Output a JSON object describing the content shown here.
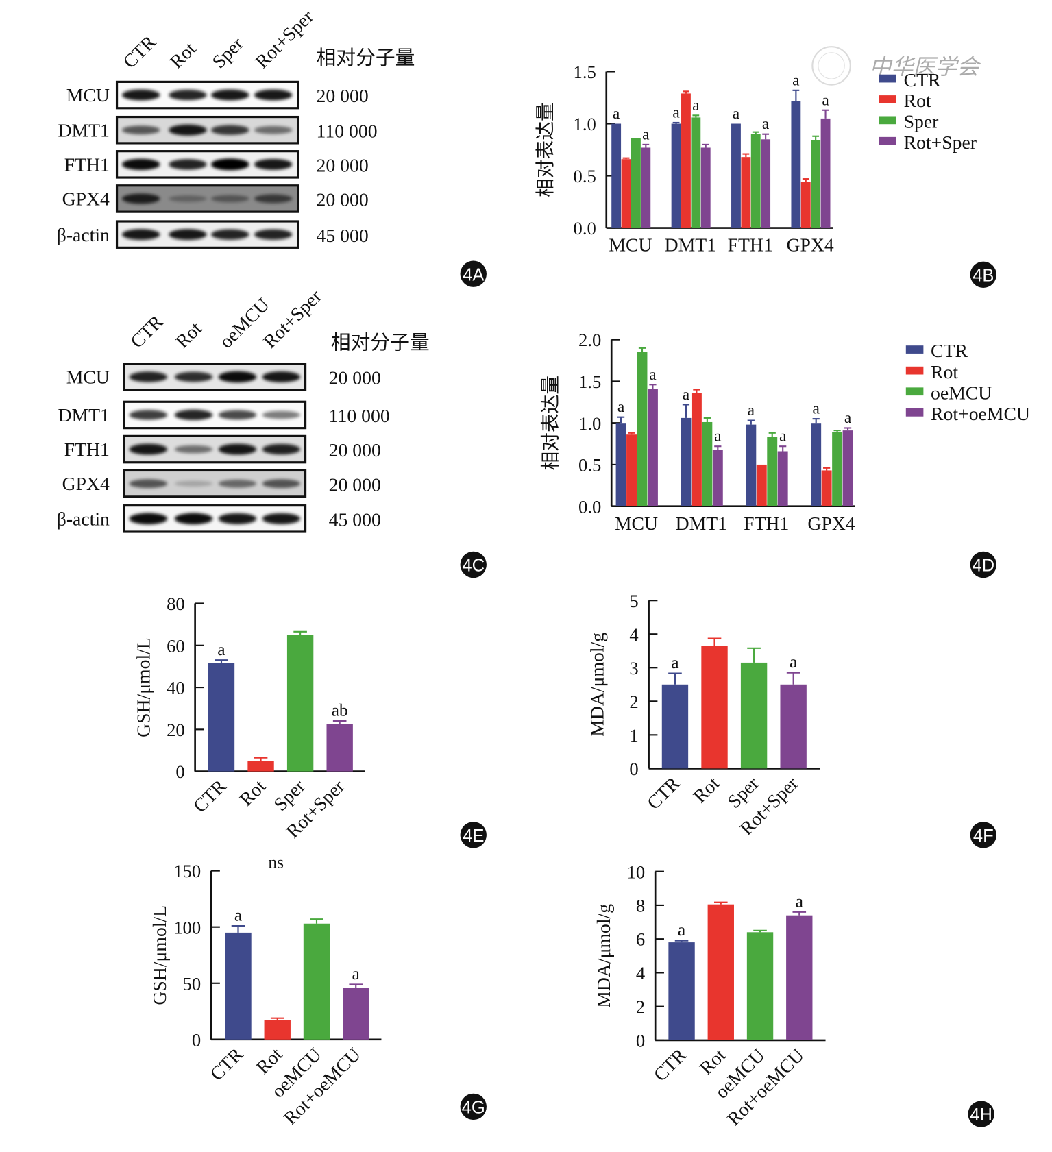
{
  "colors": {
    "CTR": "#3f4a8c",
    "Rot": "#e8352e",
    "Sper": "#4aa93e",
    "Rot+Sper": "#7f4590",
    "oeMCU": "#4aa93e",
    "Rot+oeMCU": "#7f4590"
  },
  "watermark": "中华医学会",
  "blots": [
    {
      "panel": "4A",
      "lanes": [
        "CTR",
        "Rot",
        "Sper",
        "Rot+Sper"
      ],
      "mw_header": "相对分子量",
      "rows": [
        {
          "protein": "MCU",
          "mw": "20 000"
        },
        {
          "protein": "DMT1",
          "mw": "110 000"
        },
        {
          "protein": "FTH1",
          "mw": "20 000"
        },
        {
          "protein": "GPX4",
          "mw": "20 000"
        },
        {
          "protein": "β-actin",
          "mw": "45 000"
        }
      ]
    },
    {
      "panel": "4C",
      "lanes": [
        "CTR",
        "Rot",
        "oeMCU",
        "Rot+Sper"
      ],
      "mw_header": "相对分子量",
      "rows": [
        {
          "protein": "MCU",
          "mw": "20 000"
        },
        {
          "protein": "DMT1",
          "mw": "110 000"
        },
        {
          "protein": "FTH1",
          "mw": "20 000"
        },
        {
          "protein": "GPX4",
          "mw": "20 000"
        },
        {
          "protein": "β-actin",
          "mw": "45 000"
        }
      ]
    }
  ],
  "chart_data": [
    {
      "panel": "4B",
      "type": "bar",
      "ylabel": "相对表达量",
      "ylim": [
        0,
        1.5
      ],
      "ticks": [
        "0.0",
        "0.5",
        "1.0",
        "1.5"
      ],
      "categories": [
        "MCU",
        "DMT1",
        "FTH1",
        "GPX4"
      ],
      "legend": "top-right",
      "series": [
        {
          "name": "CTR",
          "values": [
            1.0,
            1.0,
            1.0,
            1.22
          ],
          "error": [
            0.0,
            0.01,
            0.0,
            0.1
          ],
          "labels": [
            "a",
            "a",
            "a",
            "a"
          ]
        },
        {
          "name": "Rot",
          "values": [
            0.66,
            1.29,
            0.68,
            0.44
          ],
          "error": [
            0.01,
            0.02,
            0.03,
            0.03
          ],
          "labels": [
            "",
            "",
            "",
            ""
          ]
        },
        {
          "name": "Sper",
          "values": [
            0.86,
            1.06,
            0.9,
            0.84
          ],
          "error": [
            0.0,
            0.02,
            0.02,
            0.04
          ],
          "labels": [
            "",
            "a",
            "",
            ""
          ]
        },
        {
          "name": "Rot+Sper",
          "values": [
            0.77,
            0.77,
            0.85,
            1.05
          ],
          "error": [
            0.03,
            0.03,
            0.05,
            0.08
          ],
          "labels": [
            "a",
            "",
            "a",
            "a"
          ]
        }
      ]
    },
    {
      "panel": "4D",
      "type": "bar",
      "ylabel": "相对表达量",
      "ylim": [
        0,
        2.0
      ],
      "ticks": [
        "0.0",
        "0.5",
        "1.0",
        "1.5",
        "2.0"
      ],
      "categories": [
        "MCU",
        "DMT1",
        "FTH1",
        "GPX4"
      ],
      "legend": "top-right",
      "series": [
        {
          "name": "CTR",
          "values": [
            1.0,
            1.06,
            0.98,
            1.0
          ],
          "error": [
            0.07,
            0.16,
            0.05,
            0.05
          ],
          "labels": [
            "a",
            "a",
            "a",
            "a"
          ]
        },
        {
          "name": "Rot",
          "values": [
            0.86,
            1.36,
            0.5,
            0.43
          ],
          "error": [
            0.02,
            0.04,
            0.0,
            0.03
          ],
          "labels": [
            "",
            "",
            "",
            ""
          ]
        },
        {
          "name": "oeMCU",
          "values": [
            1.85,
            1.01,
            0.83,
            0.89
          ],
          "error": [
            0.05,
            0.05,
            0.05,
            0.02
          ],
          "labels": [
            "",
            "",
            "",
            ""
          ]
        },
        {
          "name": "Rot+oeMCU",
          "values": [
            1.41,
            0.68,
            0.66,
            0.91
          ],
          "error": [
            0.05,
            0.04,
            0.06,
            0.03
          ],
          "labels": [
            "a",
            "a",
            "a",
            "a"
          ]
        }
      ]
    },
    {
      "panel": "4E",
      "type": "bar",
      "ylabel": "GSH/μmol/L",
      "ylim": [
        0,
        80
      ],
      "ticks": [
        "0",
        "20",
        "40",
        "60",
        "80"
      ],
      "categories": [
        "CTR",
        "Rot",
        "Sper",
        "Rot+Sper"
      ],
      "values": [
        51.5,
        5,
        65,
        22.5
      ],
      "error": [
        1.5,
        1.5,
        1.5,
        1.5
      ],
      "labels": [
        "a",
        "",
        "",
        "ab"
      ]
    },
    {
      "panel": "4F",
      "type": "bar",
      "ylabel": "MDA/μmol/g",
      "ylim": [
        0,
        5
      ],
      "ticks": [
        "0",
        "1",
        "2",
        "3",
        "4",
        "5"
      ],
      "categories": [
        "CTR",
        "Rot",
        "Sper",
        "Rot+Sper"
      ],
      "values": [
        2.5,
        3.65,
        3.15,
        2.5
      ],
      "error": [
        0.33,
        0.22,
        0.43,
        0.35
      ],
      "labels": [
        "a",
        "",
        "",
        "a"
      ]
    },
    {
      "panel": "4G",
      "type": "bar",
      "ylabel": "GSH/μmol/L",
      "ylim": [
        0,
        150
      ],
      "ticks": [
        "0",
        "50",
        "100",
        "150"
      ],
      "categories": [
        "CTR",
        "Rot",
        "oeMCU",
        "Rot+oeMCU"
      ],
      "values": [
        95,
        17,
        103,
        46
      ],
      "error": [
        6,
        2,
        4,
        3
      ],
      "labels": [
        "a",
        "",
        "",
        "a"
      ],
      "annotation": "ns"
    },
    {
      "panel": "4H",
      "type": "bar",
      "ylabel": "MDA/μmol/g",
      "ylim": [
        0,
        10
      ],
      "ticks": [
        "0",
        "2",
        "4",
        "6",
        "8",
        "10"
      ],
      "categories": [
        "CTR",
        "Rot",
        "oeMCU",
        "Rot+oeMCU"
      ],
      "values": [
        5.8,
        8.05,
        6.4,
        7.4
      ],
      "error": [
        0.1,
        0.12,
        0.1,
        0.2
      ],
      "labels": [
        "a",
        "",
        "",
        "a"
      ]
    }
  ]
}
